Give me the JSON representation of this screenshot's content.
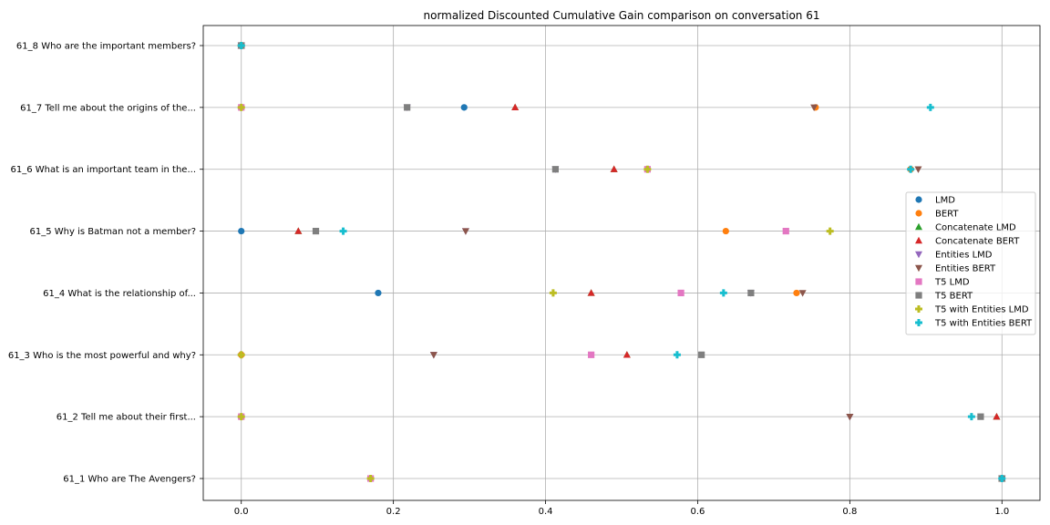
{
  "chart_data": {
    "type": "scatter",
    "title": "normalized Discounted Cumulative Gain comparison on conversation 61",
    "xlabel": "",
    "ylabel": "",
    "xlim": [
      -0.05,
      1.05
    ],
    "xticks": [
      0.0,
      0.2,
      0.4,
      0.6,
      0.8,
      1.0
    ],
    "xtick_labels": [
      "0.0",
      "0.2",
      "0.4",
      "0.6",
      "0.8",
      "1.0"
    ],
    "grid": true,
    "legend_position": "right",
    "categories": [
      "61_1 Who are The Avengers?",
      "61_2 Tell me about their first...",
      "61_3 Who is the most powerful and why?",
      "61_4 What is the relationship of...",
      "61_5 Why is Batman not a member?",
      "61_6 What is an important team in the...",
      "61_7 Tell me about the origins of the...",
      "61_8 Who are the important members?"
    ],
    "series": [
      {
        "name": "LMD",
        "marker": "circle",
        "color": "#1f77b4",
        "values": [
          0.17,
          0.0,
          0.0,
          0.18,
          0.0,
          0.88,
          0.293,
          0.0
        ]
      },
      {
        "name": "BERT",
        "marker": "circle",
        "color": "#ff7f0e",
        "values": [
          0.17,
          0.0,
          0.0,
          0.73,
          0.637,
          0.88,
          0.755,
          0.0
        ]
      },
      {
        "name": "Concatenate LMD",
        "marker": "triangle-up",
        "color": "#2ca02c",
        "values": [
          1.0,
          0.993,
          0.507,
          0.46,
          0.075,
          0.49,
          0.36,
          0.0
        ]
      },
      {
        "name": "Concatenate BERT",
        "marker": "triangle-up",
        "color": "#d62728",
        "values": [
          1.0,
          0.993,
          0.507,
          0.46,
          0.075,
          0.49,
          0.36,
          0.0
        ]
      },
      {
        "name": "Entities LMD",
        "marker": "triangle-down",
        "color": "#9467bd",
        "values": [
          1.0,
          0.8,
          0.253,
          0.67,
          0.295,
          0.413,
          0.218,
          0.0
        ]
      },
      {
        "name": "Entities BERT",
        "marker": "triangle-down",
        "color": "#8c564b",
        "values": [
          1.0,
          0.8,
          0.253,
          0.738,
          0.295,
          0.89,
          0.753,
          0.0
        ]
      },
      {
        "name": "T5 LMD",
        "marker": "square",
        "color": "#e377c2",
        "values": [
          0.17,
          0.0,
          0.46,
          0.578,
          0.716,
          0.534,
          0.0,
          0.0
        ]
      },
      {
        "name": "T5 BERT",
        "marker": "square",
        "color": "#7f7f7f",
        "values": [
          1.0,
          0.972,
          0.605,
          0.67,
          0.098,
          0.413,
          0.218,
          0.0
        ]
      },
      {
        "name": "T5 with Entities LMD",
        "marker": "plus",
        "color": "#bcbd22",
        "values": [
          0.17,
          0.0,
          0.0,
          0.41,
          0.774,
          0.534,
          0.0,
          0.0
        ]
      },
      {
        "name": "T5 with Entities BERT",
        "marker": "plus",
        "color": "#17becf",
        "values": [
          1.0,
          0.96,
          0.573,
          0.634,
          0.134,
          0.88,
          0.906,
          0.0
        ]
      }
    ]
  }
}
